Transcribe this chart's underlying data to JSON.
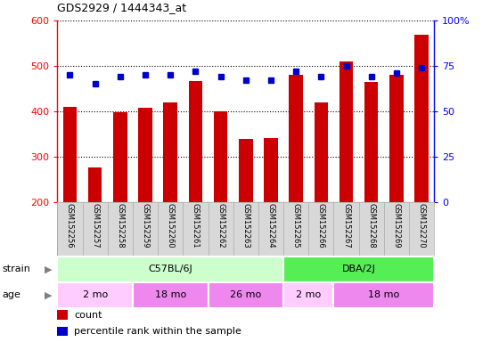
{
  "title": "GDS2929 / 1444343_at",
  "samples": [
    "GSM152256",
    "GSM152257",
    "GSM152258",
    "GSM152259",
    "GSM152260",
    "GSM152261",
    "GSM152262",
    "GSM152263",
    "GSM152264",
    "GSM152265",
    "GSM152266",
    "GSM152267",
    "GSM152268",
    "GSM152269",
    "GSM152270"
  ],
  "counts": [
    410,
    275,
    397,
    408,
    420,
    466,
    400,
    338,
    340,
    480,
    420,
    510,
    465,
    480,
    568
  ],
  "percentile_ranks": [
    70,
    65,
    69,
    70,
    70,
    72,
    69,
    67,
    67,
    72,
    69,
    75,
    69,
    71,
    74
  ],
  "ylim_left": [
    200,
    600
  ],
  "ylim_right": [
    0,
    100
  ],
  "yticks_left": [
    200,
    300,
    400,
    500,
    600
  ],
  "yticks_right": [
    0,
    25,
    50,
    75,
    100
  ],
  "ytick_right_labels": [
    "0",
    "25",
    "50",
    "75",
    "100%"
  ],
  "bar_color": "#cc0000",
  "dot_color": "#0000cc",
  "bar_bottom": 200,
  "strain_groups": [
    {
      "label": "C57BL/6J",
      "start": 0,
      "end": 9,
      "color": "#ccffcc"
    },
    {
      "label": "DBA/2J",
      "start": 9,
      "end": 15,
      "color": "#55ee55"
    }
  ],
  "age_groups": [
    {
      "label": "2 mo",
      "start": 0,
      "end": 3,
      "color": "#ffccff"
    },
    {
      "label": "18 mo",
      "start": 3,
      "end": 6,
      "color": "#ee88ee"
    },
    {
      "label": "26 mo",
      "start": 6,
      "end": 9,
      "color": "#ee88ee"
    },
    {
      "label": "2 mo",
      "start": 9,
      "end": 11,
      "color": "#ffccff"
    },
    {
      "label": "18 mo",
      "start": 11,
      "end": 15,
      "color": "#ee88ee"
    }
  ],
  "legend_count_label": "count",
  "legend_pct_label": "percentile rank within the sample",
  "strain_label": "strain",
  "age_label": "age",
  "bg_color": "#ffffff",
  "label_area_color": "#d8d8d8",
  "grid_color": "#000000",
  "spine_color": "#aaaaaa"
}
